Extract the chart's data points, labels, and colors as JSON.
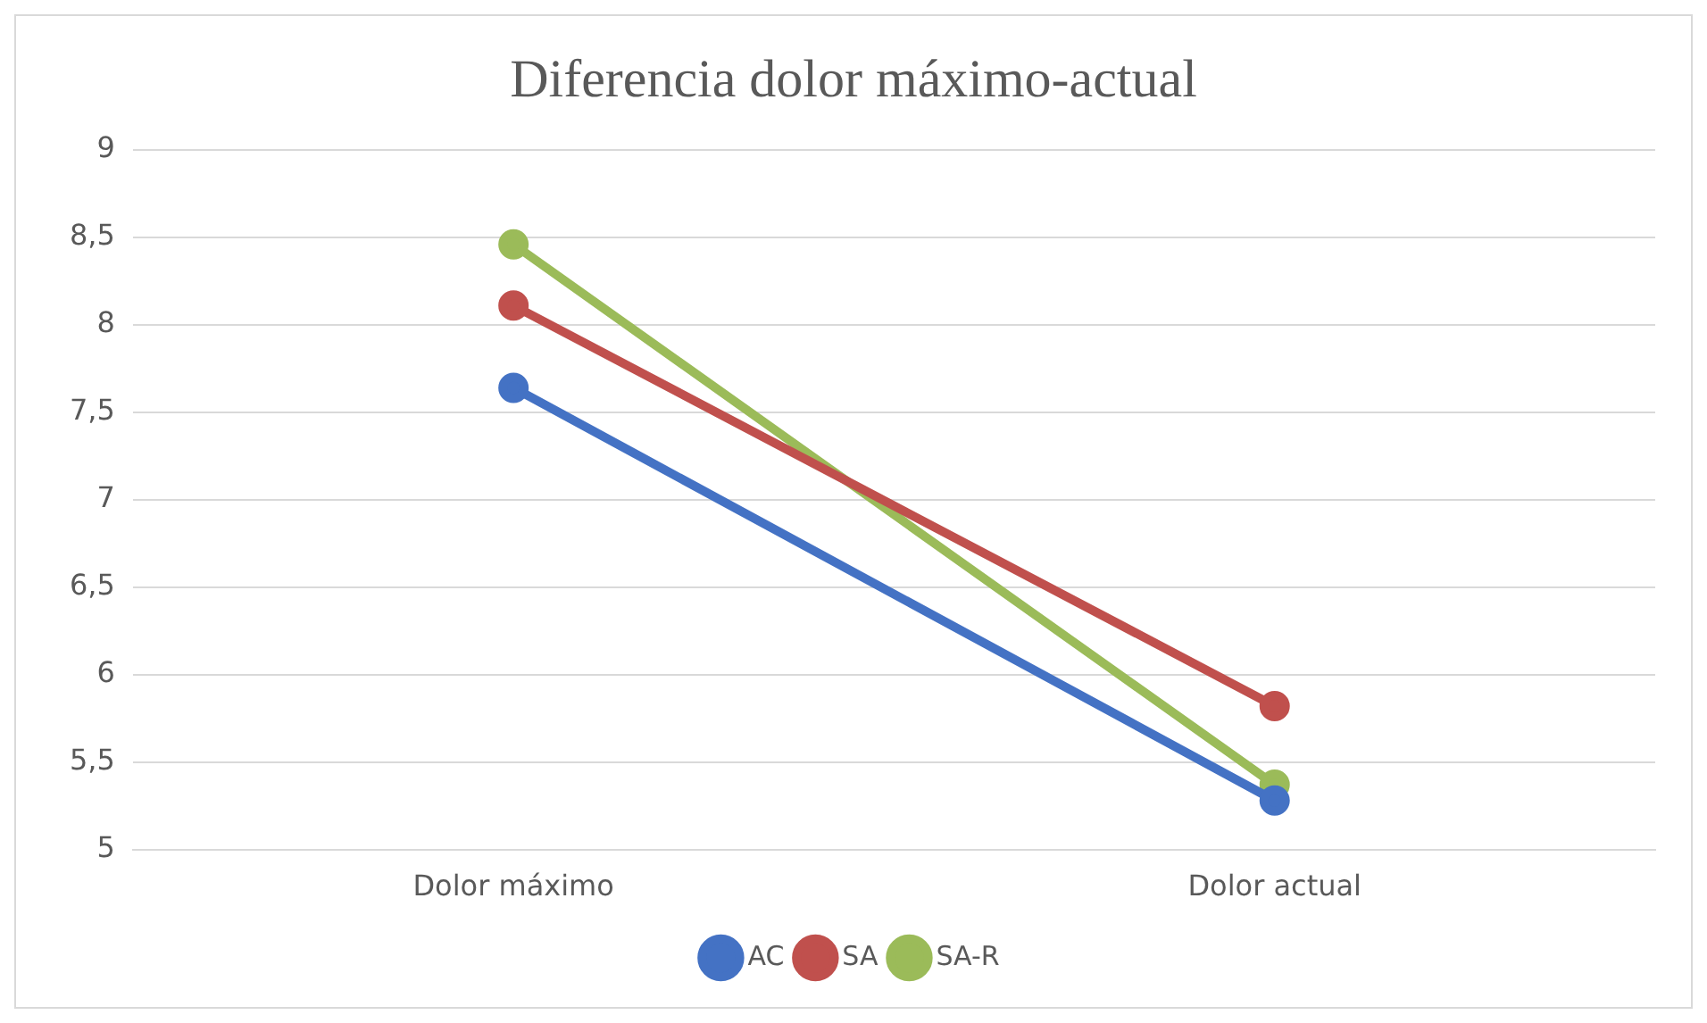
{
  "chart_data": {
    "type": "line",
    "title": "Diferencia dolor máximo-actual",
    "categories": [
      "Dolor máximo",
      "Dolor actual"
    ],
    "series": [
      {
        "name": "AC",
        "color": "#4472c4",
        "values": [
          7.64,
          5.28
        ]
      },
      {
        "name": "SA",
        "color": "#c0504d",
        "values": [
          8.11,
          5.82
        ]
      },
      {
        "name": "SA-R",
        "color": "#9bbb59",
        "values": [
          8.46,
          5.37
        ]
      }
    ],
    "ylim": [
      5,
      9
    ],
    "yticks": [
      5,
      {
        "value": 5.5,
        "label": "5,5"
      },
      6,
      {
        "value": 6.5,
        "label": "6,5"
      },
      7,
      {
        "value": 7.5,
        "label": "7,5"
      },
      8,
      {
        "value": 8.5,
        "label": "8,5"
      },
      9
    ],
    "grid": "y",
    "legend": "bottom",
    "marker": "circle",
    "line_style": "solid"
  }
}
